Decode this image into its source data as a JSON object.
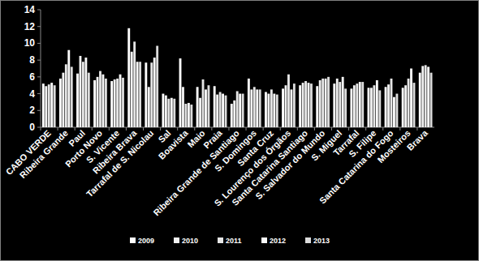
{
  "chart_data": {
    "type": "bar",
    "categories": [
      "CABO VERDE",
      "Ribeira Grande",
      "Paul",
      "Porto Novo",
      "S. Vicente",
      "Ribeira Brava",
      "Tarrafal de S. Nicolau",
      "Sal",
      "Boavista",
      "Maio",
      "Praia",
      "Ribeira Grande de Santiago",
      "S. Domingos",
      "Santa Cruz",
      "S. Lourenço dos Órgãos",
      "Santa Catarina Santiago",
      "S. Salvador do Mundo",
      "S. Miguel",
      "Tarrafal",
      "S. Filipe",
      "Santa Catarina do Fogo",
      "Mosteiros",
      "Brava"
    ],
    "series": [
      {
        "name": "2009",
        "color": "#ffffff",
        "values": [
          5.2,
          5.8,
          6.4,
          5.6,
          5.5,
          11.8,
          7.7,
          4.0,
          8.2,
          4.8,
          4.9,
          2.8,
          5.8,
          4.2,
          4.6,
          5.0,
          4.9,
          5.2,
          4.6,
          4.7,
          4.8,
          4.7,
          6.5
        ]
      },
      {
        "name": "2010",
        "color": "#f2f2f2",
        "values": [
          4.9,
          6.5,
          8.5,
          6.0,
          5.7,
          9.0,
          4.8,
          3.8,
          4.8,
          3.5,
          3.9,
          3.2,
          4.5,
          4.0,
          5.0,
          5.3,
          5.6,
          5.8,
          5.0,
          4.7,
          5.1,
          5.0,
          7.3
        ]
      },
      {
        "name": "2011",
        "color": "#e6e6e6",
        "values": [
          5.1,
          7.5,
          7.8,
          6.7,
          5.8,
          10.2,
          7.7,
          3.4,
          2.8,
          5.7,
          4.2,
          4.3,
          4.8,
          4.5,
          6.3,
          5.5,
          5.8,
          5.4,
          5.2,
          5.0,
          5.8,
          5.8,
          7.4
        ]
      },
      {
        "name": "2012",
        "color": "#fafafa",
        "values": [
          5.3,
          9.2,
          8.3,
          6.3,
          6.3,
          7.8,
          8.3,
          3.5,
          2.9,
          4.5,
          4.0,
          4.0,
          4.5,
          4.0,
          4.5,
          5.3,
          5.8,
          6.0,
          5.4,
          5.6,
          3.6,
          7.0,
          7.2
        ]
      },
      {
        "name": "2013",
        "color": "#dcdcdc",
        "values": [
          5.0,
          7.2,
          6.5,
          5.8,
          5.9,
          7.8,
          9.7,
          3.4,
          2.7,
          5.0,
          3.8,
          4.0,
          4.5,
          3.9,
          5.2,
          5.2,
          6.0,
          4.6,
          5.4,
          4.4,
          4.0,
          5.3,
          6.5
        ]
      }
    ],
    "ylim": [
      0,
      14
    ],
    "yticks": [
      0,
      2,
      4,
      6,
      8,
      10,
      12,
      14
    ],
    "grid": false,
    "legend": "bottom"
  }
}
